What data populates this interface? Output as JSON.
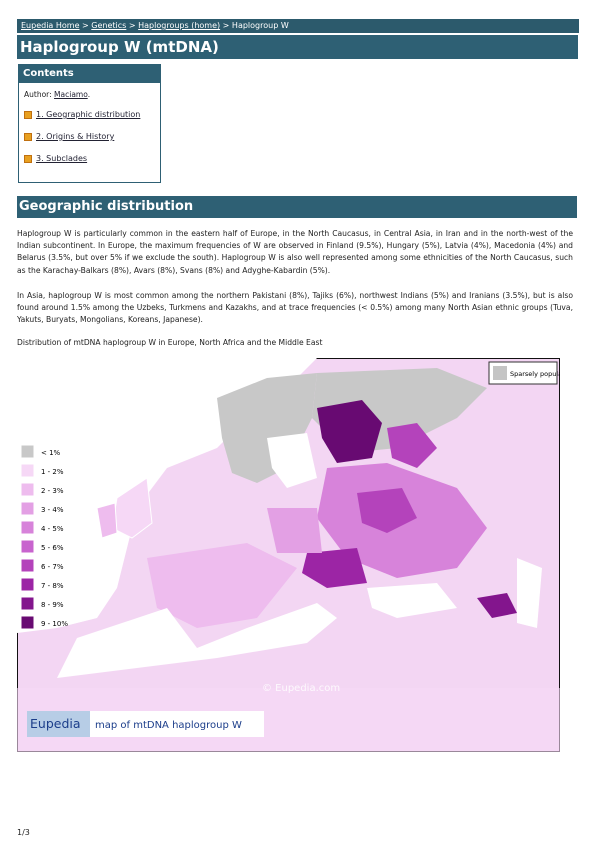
{
  "breadcrumb": {
    "items": [
      "Eupedia Home",
      "Genetics",
      "Haplogroups (home)",
      "Haplogroup W"
    ],
    "separator": ">"
  },
  "title": "Haplogroup W (mtDNA)",
  "contents": {
    "heading": "Contents",
    "author_label": "Author:",
    "author": "Maciamo",
    "author_end": ".",
    "items": [
      "1. Geographic distribution",
      "2. Origins & History",
      "3. Subclades"
    ]
  },
  "section": {
    "heading": "Geographic distribution",
    "paragraphs": [
      "Haplogroup W is particularly common in the eastern half of Europe, in the North Caucasus, in Central Asia, in Iran and in the north-west of the Indian subcontinent. In Europe, the maximum frequencies of W are observed in Finland (9.5%), Hungary (5%), Latvia (4%), Macedonia (4%) and Belarus (3.5%, but over 5% if we exclude the south). Haplogroup W is also well represented among some ethnicities of the North Caucasus, such as the Karachay-Balkars (8%), Avars (8%), Svans (8%) and Adyghe-Kabardin (5%).",
      "In Asia, haplogroup W is most common among the northern Pakistani (8%), Tajiks (6%), northwest Indians (5%) and Iranians (3.5%), but is also found around 1.5% among the Uzbeks, Turkmens and Kazakhs, and at trace frequencies (< 0.5%) among many North Asian ethnic groups (Tuva, Yakuts, Buryats, Mongolians, Koreans, Japanese)."
    ],
    "caption": "Distribution of mtDNA haplogroup W in Europe, North Africa and the Middle East"
  },
  "map": {
    "sparse_label": "Sparsely populated",
    "sparse_color": "#c4c4c4",
    "legend": [
      {
        "label": "< 1%",
        "color": "#c8c8c8"
      },
      {
        "label": "1 - 2%",
        "color": "#f6d8f6"
      },
      {
        "label": "2 - 3%",
        "color": "#eebcee"
      },
      {
        "label": "3 - 4%",
        "color": "#e3a0e4"
      },
      {
        "label": "4 - 5%",
        "color": "#d783da"
      },
      {
        "label": "5 - 6%",
        "color": "#c864ce"
      },
      {
        "label": "6 - 7%",
        "color": "#b443bb"
      },
      {
        "label": "7 - 8%",
        "color": "#9c25a5"
      },
      {
        "label": "8 - 9%",
        "color": "#83158d"
      },
      {
        "label": "9 - 10%",
        "color": "#680a72"
      }
    ],
    "watermark": "© Eupedia.com",
    "brand": "Eupedia",
    "banner": "map of mtDNA haplogroup W"
  },
  "footer": "1/3"
}
